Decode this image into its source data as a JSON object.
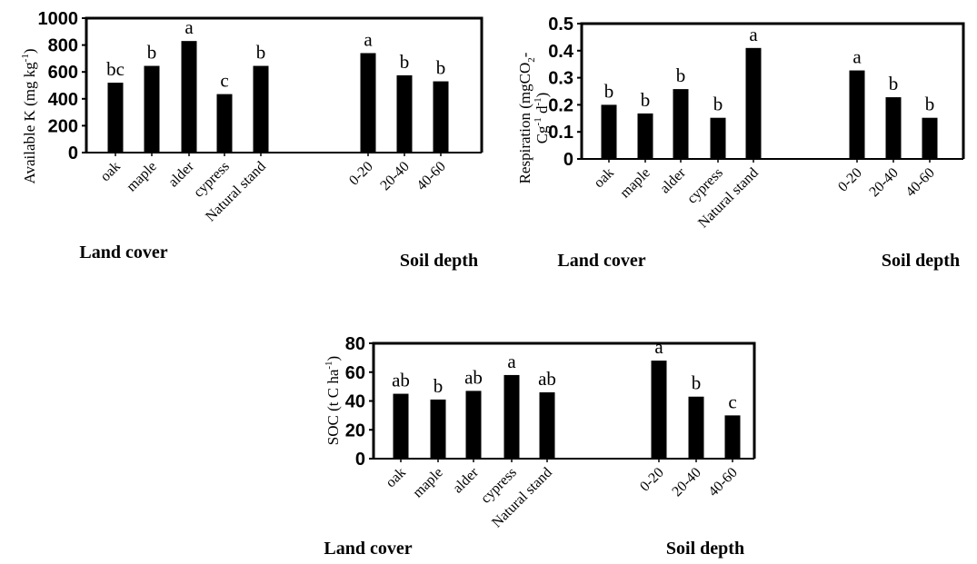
{
  "chart_data": [
    {
      "type": "bar",
      "ylabel": {
        "pre": "Available  K (mg kg",
        "sup": "-1",
        "post": ")"
      },
      "ylim": [
        0,
        1000
      ],
      "yticks": [
        "0",
        "200",
        "400",
        "600",
        "800",
        "1000"
      ],
      "categories": [
        "oak",
        "maple",
        "alder",
        "cypress",
        "Natural stand",
        "0-20",
        "20-40",
        "40-60"
      ],
      "values": [
        520,
        645,
        830,
        435,
        645,
        740,
        575,
        530
      ],
      "letters": [
        "bc",
        "b",
        "a",
        "c",
        "b",
        "a",
        "b",
        "b"
      ],
      "group_labels": [
        "Land cover",
        "Soil depth"
      ]
    },
    {
      "type": "bar",
      "ylabel": {
        "line1_pre": "Respiration (mgCO",
        "line1_sub": "2",
        "line1_post": "-",
        "line2_pre": "Cg",
        "line2_sup1": "-1",
        "line2_mid": " d",
        "line2_sup2": "-1",
        "line2_post": ")"
      },
      "ylim": [
        0,
        0.5
      ],
      "yticks": [
        "0",
        "0.1",
        "0.2",
        "0.3",
        "0.4",
        "0.5"
      ],
      "categories": [
        "oak",
        "maple",
        "alder",
        "cypress",
        "Natural stand",
        "0-20",
        "20-40",
        "40-60"
      ],
      "values": [
        0.2,
        0.168,
        0.258,
        0.152,
        0.41,
        0.327,
        0.228,
        0.152
      ],
      "letters": [
        "b",
        "b",
        "b",
        "b",
        "a",
        "a",
        "b",
        "b"
      ],
      "group_labels": [
        "Land cover",
        "Soil depth"
      ]
    },
    {
      "type": "bar",
      "ylabel": {
        "pre": "SOC (t C ha",
        "sup": "-1",
        "post": ")"
      },
      "ylim": [
        0,
        80
      ],
      "yticks": [
        "0",
        "20",
        "40",
        "60",
        "80"
      ],
      "categories": [
        "oak",
        "maple",
        "alder",
        "cypress",
        "Natural stand",
        "0-20",
        "20-40",
        "40-60"
      ],
      "values": [
        45,
        41,
        47,
        58,
        46,
        68,
        43,
        30
      ],
      "letters": [
        "ab",
        "b",
        "ab",
        "a",
        "ab",
        "a",
        "b",
        "c"
      ],
      "group_labels": [
        "Land cover",
        "Soil depth"
      ]
    }
  ]
}
